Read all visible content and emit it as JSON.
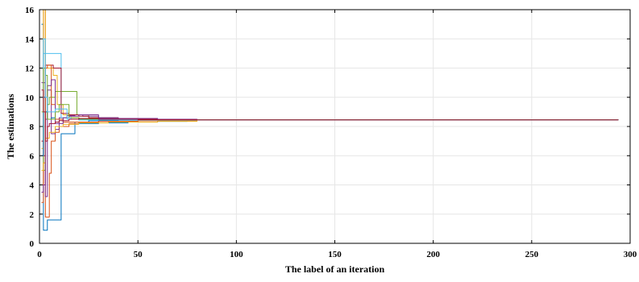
{
  "chart_data": {
    "type": "line",
    "title": "",
    "xlabel": "The label of an iteration",
    "ylabel": "The estimations",
    "xlim": [
      0,
      300
    ],
    "ylim": [
      0,
      16
    ],
    "xticks": [
      0,
      50,
      100,
      150,
      200,
      250,
      300
    ],
    "yticks": [
      0,
      2,
      4,
      6,
      8,
      10,
      12,
      14,
      16
    ],
    "grid": true,
    "legend": "none",
    "converged_value": 8.45,
    "series": [
      {
        "color": "#0072BD",
        "x": [
          1,
          2,
          3,
          4,
          5,
          6,
          7,
          8,
          9,
          10,
          11,
          12,
          15,
          18,
          25,
          40,
          60,
          80,
          294
        ],
        "y": [
          15.0,
          0.9,
          0.9,
          1.6,
          1.6,
          1.6,
          1.6,
          1.6,
          1.6,
          1.6,
          7.5,
          7.5,
          7.5,
          8.3,
          8.4,
          8.43,
          8.45,
          8.45,
          8.45
        ]
      },
      {
        "color": "#D95319",
        "x": [
          1,
          2,
          3,
          4,
          5,
          6,
          8,
          10,
          15,
          20,
          30,
          50,
          80,
          294
        ],
        "y": [
          2.8,
          16.0,
          1.8,
          1.8,
          4.8,
          7.0,
          7.6,
          8.0,
          8.2,
          8.3,
          8.35,
          8.4,
          8.45,
          8.45
        ]
      },
      {
        "color": "#EDB120",
        "x": [
          1,
          2,
          3,
          5,
          7,
          9,
          12,
          16,
          20,
          30,
          50,
          80,
          294
        ],
        "y": [
          6.5,
          16.0,
          12.0,
          12.0,
          11.5,
          9.5,
          8.8,
          8.6,
          8.5,
          8.48,
          8.46,
          8.45,
          8.45
        ]
      },
      {
        "color": "#7E2F8E",
        "x": [
          1,
          2,
          3,
          4,
          6,
          8,
          10,
          14,
          18,
          22,
          30,
          40,
          50,
          70,
          294
        ],
        "y": [
          11.0,
          11.0,
          3.2,
          10.5,
          7.5,
          7.8,
          8.6,
          8.75,
          8.8,
          8.7,
          8.55,
          8.5,
          8.48,
          8.46,
          8.45
        ]
      },
      {
        "color": "#77AC30",
        "x": [
          1,
          2,
          3,
          4,
          5,
          8,
          12,
          16,
          18,
          19,
          25,
          40,
          60,
          80,
          294
        ],
        "y": [
          8.0,
          5.0,
          9.0,
          9.5,
          10.0,
          10.4,
          10.4,
          10.4,
          10.4,
          8.8,
          8.6,
          8.5,
          8.47,
          8.45,
          8.45
        ]
      },
      {
        "color": "#4DBEEE",
        "x": [
          1,
          2,
          3,
          4,
          6,
          8,
          10,
          11,
          14,
          20,
          30,
          50,
          80,
          294
        ],
        "y": [
          10.0,
          13.0,
          13.0,
          13.0,
          13.0,
          13.0,
          13.0,
          8.6,
          8.5,
          8.45,
          8.45,
          8.45,
          8.45,
          8.45
        ]
      },
      {
        "color": "#A2142F",
        "x": [
          1,
          2,
          3,
          4,
          5,
          7,
          10,
          11,
          15,
          20,
          25,
          40,
          60,
          80,
          294
        ],
        "y": [
          7.0,
          6.0,
          12.2,
          12.2,
          12.2,
          12.0,
          12.0,
          8.9,
          8.8,
          8.7,
          8.6,
          8.5,
          8.47,
          8.45,
          8.45
        ]
      },
      {
        "color": "#0072BD",
        "x": [
          1,
          2,
          3,
          4,
          6,
          8,
          12,
          20,
          30,
          45,
          60,
          75,
          294
        ],
        "y": [
          6.0,
          10.0,
          9.0,
          8.5,
          8.6,
          8.5,
          8.3,
          8.2,
          8.25,
          8.3,
          8.35,
          8.45,
          8.45
        ]
      },
      {
        "color": "#D95319",
        "x": [
          1,
          2,
          3,
          4,
          5,
          6,
          8,
          12,
          20,
          30,
          50,
          80,
          294
        ],
        "y": [
          4.0,
          5.5,
          12.0,
          12.2,
          12.2,
          9.5,
          8.5,
          8.3,
          8.3,
          8.35,
          8.4,
          8.45,
          8.45
        ]
      },
      {
        "color": "#EDB120",
        "x": [
          1,
          2,
          3,
          5,
          8,
          12,
          20,
          35,
          60,
          80,
          294
        ],
        "y": [
          5.0,
          5.5,
          7.2,
          7.6,
          8.0,
          8.15,
          8.25,
          8.3,
          8.35,
          8.45,
          8.45
        ]
      },
      {
        "color": "#7E2F8E",
        "x": [
          1,
          2,
          3,
          4,
          6,
          8,
          12,
          15,
          20,
          30,
          40,
          60,
          80,
          294
        ],
        "y": [
          3.5,
          4.0,
          8.5,
          10.8,
          11.2,
          8.2,
          8.6,
          8.7,
          8.8,
          8.6,
          8.55,
          8.5,
          8.45,
          8.45
        ]
      },
      {
        "color": "#77AC30",
        "x": [
          1,
          2,
          3,
          4,
          6,
          8,
          10,
          12,
          15,
          20,
          40,
          60,
          80,
          294
        ],
        "y": [
          9.0,
          12.0,
          11.5,
          8.5,
          8.5,
          9.0,
          9.5,
          9.5,
          8.6,
          8.5,
          8.47,
          8.46,
          8.45,
          8.45
        ]
      },
      {
        "color": "#4DBEEE",
        "x": [
          1,
          2,
          3,
          4,
          6,
          8,
          10,
          12,
          14,
          16,
          20,
          40,
          80,
          294
        ],
        "y": [
          12.0,
          14.0,
          10.0,
          9.0,
          9.0,
          9.2,
          9.2,
          9.2,
          8.6,
          8.5,
          8.45,
          8.45,
          8.45,
          8.45
        ]
      },
      {
        "color": "#A2142F",
        "x": [
          1,
          2,
          3,
          4,
          5,
          8,
          10,
          15,
          20,
          30,
          50,
          80,
          294
        ],
        "y": [
          10.5,
          9.0,
          7.0,
          8.0,
          8.2,
          8.3,
          8.4,
          8.5,
          8.55,
          8.5,
          8.47,
          8.45,
          8.45
        ]
      }
    ]
  }
}
